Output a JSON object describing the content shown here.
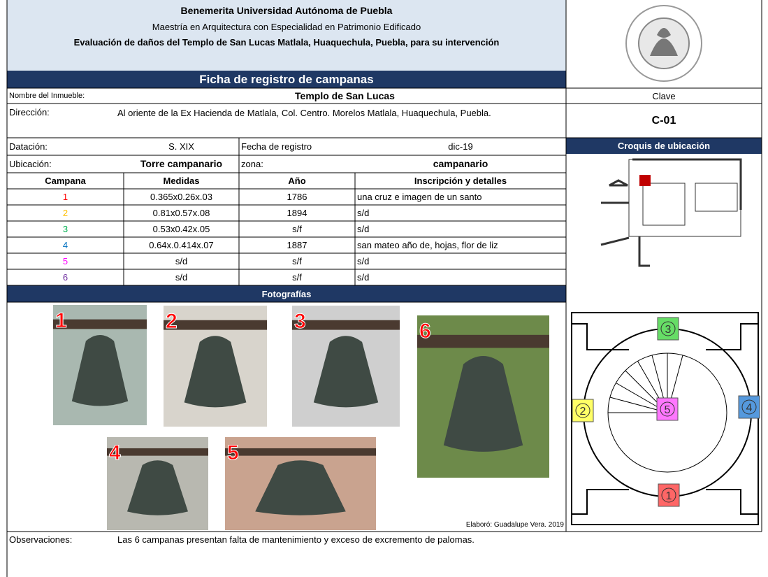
{
  "header": {
    "university": "Benemerita Universidad Autónoma de Puebla",
    "program": "Maestría en Arquitectura con Especialidad en Patrimonio Edificado",
    "project": "Evaluación de daños del Templo de San Lucas Matlala, Huaquechula, Puebla, para su intervención"
  },
  "title": "Ficha de registro de campanas",
  "fields": {
    "nombre_label": "Nombre del Inmueble:",
    "nombre": "Templo de San Lucas",
    "clave_label": "Clave",
    "clave": "C-01",
    "direccion_label": "Dirección:",
    "direccion": "Al oriente de la Ex Hacienda de Matlala, Col. Centro. Morelos Matlala, Huaquechula, Puebla.",
    "datacion_label": "Datación:",
    "datacion": "S. XIX",
    "fecha_label": "Fecha de registro",
    "fecha": "dic-19",
    "croquis": "Croquis de ubicación",
    "ubicacion_label": "Ubicación:",
    "ubicacion": "Torre campanario",
    "zona_label": "zona:",
    "zona": "campanario"
  },
  "table": {
    "columns": [
      "Campana",
      "Medidas",
      "Año",
      "Inscripción y detalles"
    ],
    "rows": [
      [
        1,
        "0.365x0.26x.03",
        "1786",
        "una cruz e imagen de un santo"
      ],
      [
        2,
        "0.81x0.57x.08",
        "1894",
        "s/d"
      ],
      [
        3,
        "0.53x0.42x.05",
        "s/f",
        "s/d"
      ],
      [
        4,
        "0.64x.0.414x.07",
        "1887",
        "san mateo año de, hojas, flor de liz"
      ],
      [
        5,
        "s/d",
        "s/f",
        "s/d"
      ],
      [
        6,
        "s/d",
        "s/f",
        "s/d"
      ]
    ],
    "colors": [
      "#ff0000",
      "#ffc000",
      "#00b050",
      "#0070c0",
      "#ff00ff",
      "#7030a0"
    ]
  },
  "fotos_title": "Fotografías",
  "photo_labels": [
    1,
    2,
    3,
    6,
    4,
    5
  ],
  "credit": "Elaboró: Guadalupe Vera. 2019",
  "plan_labels": [
    3,
    2,
    4,
    5,
    1
  ],
  "plan_colors": [
    "#66dd66",
    "#ffff66",
    "#5599dd",
    "#ff77ff",
    "#ff6666"
  ],
  "observaciones_label": "Observaciones:",
  "observaciones": "Las 6 campanas presentan falta de mantenimiento y exceso de excremento de palomas."
}
